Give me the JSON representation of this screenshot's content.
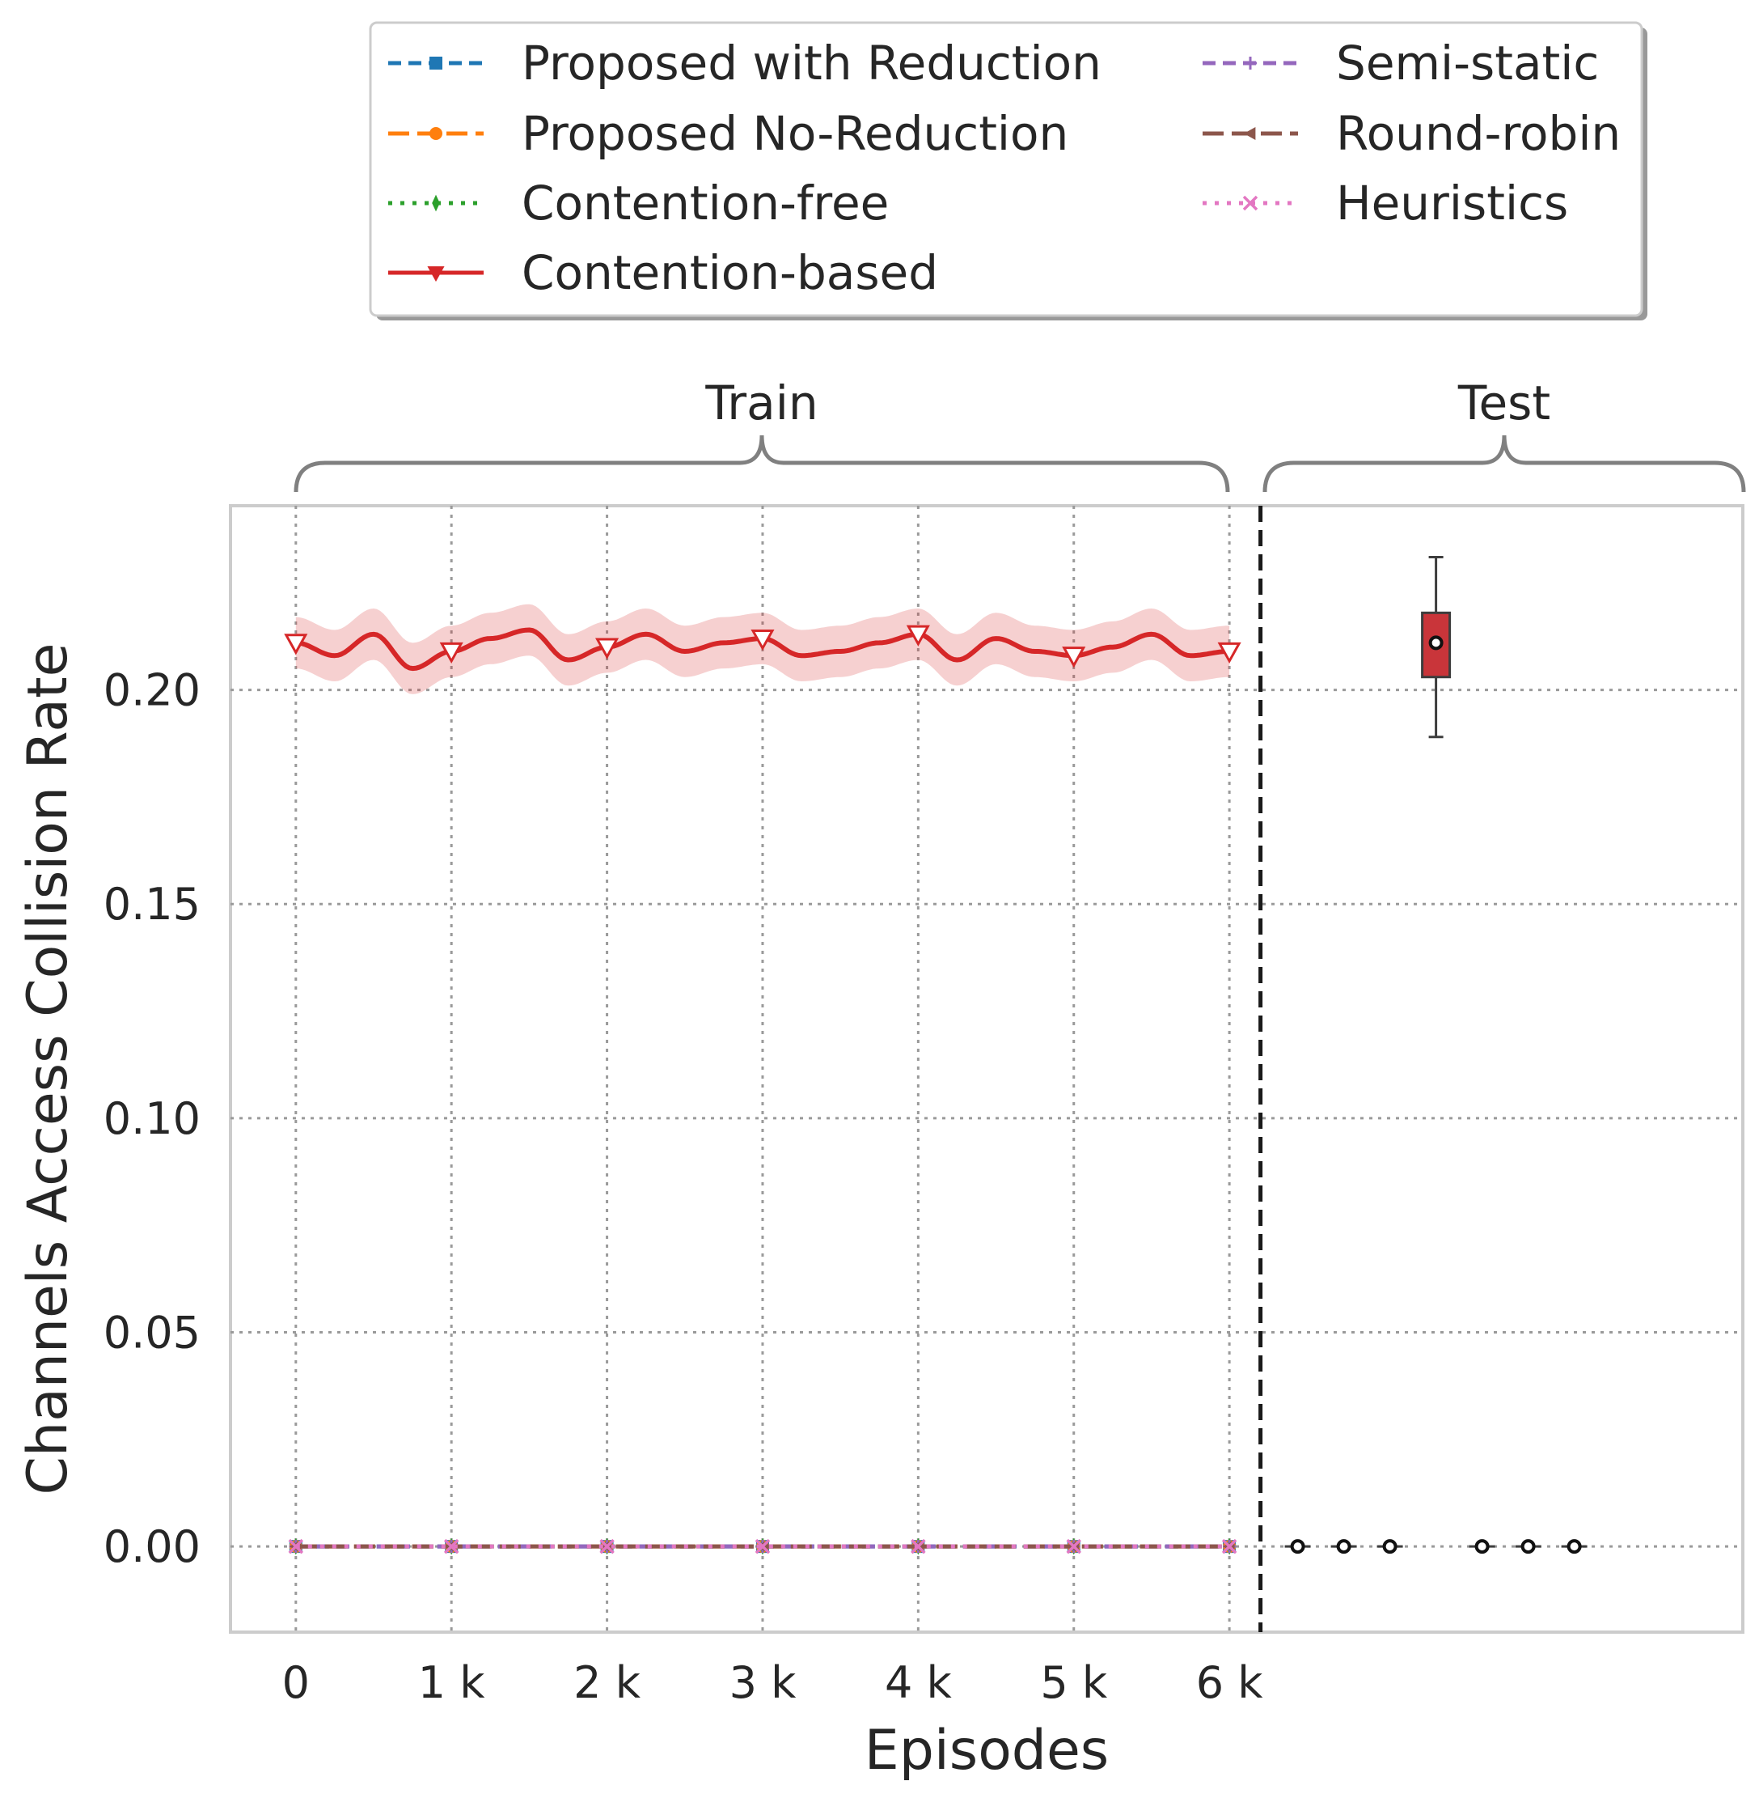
{
  "chart_data": {
    "type": "line",
    "xlabel": "Episodes",
    "ylabel": "Channels Access Collision Rate",
    "section_labels": {
      "train": "Train",
      "test": "Test"
    },
    "x_ticks": [
      {
        "value": 0,
        "label": "0"
      },
      {
        "value": 1000,
        "label": "1 k"
      },
      {
        "value": 2000,
        "label": "2 k"
      },
      {
        "value": 3000,
        "label": "3 k"
      },
      {
        "value": 4000,
        "label": "4 k"
      },
      {
        "value": 5000,
        "label": "5 k"
      },
      {
        "value": 6000,
        "label": "6 k"
      }
    ],
    "y_ticks": [
      {
        "value": 0.0,
        "label": "0.00"
      },
      {
        "value": 0.05,
        "label": "0.05"
      },
      {
        "value": 0.1,
        "label": "0.10"
      },
      {
        "value": 0.15,
        "label": "0.15"
      },
      {
        "value": 0.2,
        "label": "0.20"
      }
    ],
    "xlim": [
      -420,
      9300
    ],
    "ylim": [
      -0.02,
      0.243
    ],
    "train_end": 6200,
    "grid": true,
    "legend_position": "top",
    "series": [
      {
        "name": "Proposed with Reduction",
        "color": "#1f77b4",
        "dash": "dashed",
        "marker": "square",
        "x": [
          0,
          1000,
          2000,
          3000,
          4000,
          5000,
          6000
        ],
        "values": [
          0,
          0,
          0,
          0,
          0,
          0,
          0
        ],
        "test": {
          "median": 0.0,
          "q1": 0.0,
          "q3": 0.0,
          "whisker_low": 0.0,
          "whisker_high": 0.0
        }
      },
      {
        "name": "Proposed No-Reduction",
        "color": "#ff7f0e",
        "dash": "longdash",
        "marker": "circle",
        "x": [
          0,
          1000,
          2000,
          3000,
          4000,
          5000,
          6000
        ],
        "values": [
          0,
          0,
          0,
          0,
          0,
          0,
          0
        ],
        "test": {
          "median": 0.0,
          "q1": 0.0,
          "q3": 0.0,
          "whisker_low": 0.0,
          "whisker_high": 0.0
        }
      },
      {
        "name": "Contention-free",
        "color": "#2ca02c",
        "dash": "dotted",
        "marker": "thin_diamond",
        "x": [
          0,
          1000,
          2000,
          3000,
          4000,
          5000,
          6000
        ],
        "values": [
          0,
          0,
          0,
          0,
          0,
          0,
          0
        ],
        "test": {
          "median": 0.0,
          "q1": 0.0,
          "q3": 0.0,
          "whisker_low": 0.0,
          "whisker_high": 0.0
        }
      },
      {
        "name": "Contention-based",
        "color": "#d62728",
        "dash": "solid",
        "marker": "triangle_down",
        "x": [
          0,
          250,
          500,
          750,
          1000,
          1250,
          1500,
          1750,
          2000,
          2250,
          2500,
          2750,
          3000,
          3250,
          3500,
          3750,
          4000,
          4250,
          4500,
          4750,
          5000,
          5250,
          5500,
          5750,
          6000
        ],
        "values": [
          0.211,
          0.208,
          0.213,
          0.205,
          0.209,
          0.212,
          0.214,
          0.207,
          0.21,
          0.213,
          0.209,
          0.211,
          0.212,
          0.208,
          0.209,
          0.211,
          0.213,
          0.207,
          0.212,
          0.209,
          0.208,
          0.21,
          0.213,
          0.208,
          0.209
        ],
        "test": {
          "median": 0.211,
          "q1": 0.203,
          "q3": 0.218,
          "whisker_low": 0.189,
          "whisker_high": 0.231
        }
      },
      {
        "name": "Semi-static",
        "color": "#9467bd",
        "dash": "dashed",
        "marker": "plus",
        "x": [
          0,
          1000,
          2000,
          3000,
          4000,
          5000,
          6000
        ],
        "values": [
          0,
          0,
          0,
          0,
          0,
          0,
          0
        ],
        "test": {
          "median": 0.0,
          "q1": 0.0,
          "q3": 0.0,
          "whisker_low": 0.0,
          "whisker_high": 0.0
        }
      },
      {
        "name": "Round-robin",
        "color": "#8c564b",
        "dash": "longdash",
        "marker": "triangle_left",
        "x": [
          0,
          1000,
          2000,
          3000,
          4000,
          5000,
          6000
        ],
        "values": [
          0,
          0,
          0,
          0,
          0,
          0,
          0
        ],
        "test": {
          "median": 0.0,
          "q1": 0.0,
          "q3": 0.0,
          "whisker_low": 0.0,
          "whisker_high": 0.0
        }
      },
      {
        "name": "Heuristics",
        "color": "#e377c2",
        "dash": "dotted",
        "marker": "x",
        "x": [
          0,
          1000,
          2000,
          3000,
          4000,
          5000,
          6000
        ],
        "values": [
          0,
          0,
          0,
          0,
          0,
          0,
          0
        ],
        "test": {
          "median": 0.0,
          "q1": 0.0,
          "q3": 0.0,
          "whisker_low": 0.0,
          "whisker_high": 0.0
        }
      }
    ]
  }
}
